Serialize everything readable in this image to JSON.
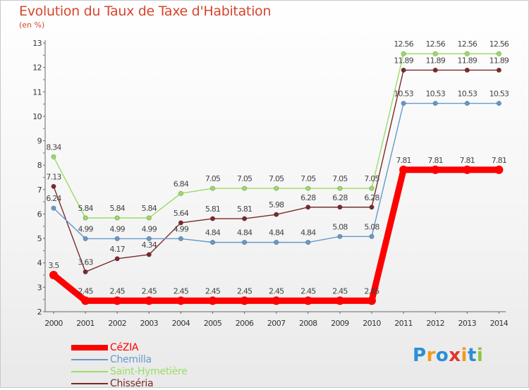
{
  "chart_data": {
    "type": "line",
    "title": "Evolution du Taux de Taxe d'Habitation",
    "subtitle": "(en %)",
    "x": [
      "2000",
      "2001",
      "2002",
      "2003",
      "2004",
      "2005",
      "2006",
      "2007",
      "2008",
      "2009",
      "2010",
      "2011",
      "2012",
      "2013",
      "2014"
    ],
    "ylim": [
      2,
      13
    ],
    "yticks": [
      "2",
      "3",
      "4",
      "5",
      "6",
      "7",
      "8",
      "9",
      "10",
      "11",
      "12",
      "13"
    ],
    "grid": false,
    "legend_position": "bottom-left",
    "series": [
      {
        "name": "CéZIA",
        "color": "#ff0000",
        "values": [
          3.5,
          2.45,
          2.45,
          2.45,
          2.45,
          2.45,
          2.45,
          2.45,
          2.45,
          2.45,
          2.45,
          7.81,
          7.81,
          7.81,
          7.81
        ],
        "labels": [
          "3.5",
          "2.45",
          "2.45",
          "2.45",
          "2.45",
          "2.45",
          "2.45",
          "2.45",
          "2.45",
          "2.45",
          "2.45",
          "7.81",
          "7.81",
          "7.81",
          "7.81"
        ]
      },
      {
        "name": "Chemilla",
        "color": "#6699cc",
        "values": [
          6.24,
          4.99,
          4.99,
          4.99,
          4.99,
          4.84,
          4.84,
          4.84,
          4.84,
          5.08,
          5.08,
          10.53,
          10.53,
          10.53,
          10.53
        ],
        "labels": [
          "6.24",
          "4.99",
          "4.99",
          "4.99",
          "4.99",
          "4.84",
          "4.84",
          "4.84",
          "4.84",
          "5.08",
          "5.08",
          "10.53",
          "10.53",
          "10.53",
          "10.53"
        ]
      },
      {
        "name": "Saint-Hymetière",
        "color": "#99dd66",
        "values": [
          8.34,
          5.84,
          5.84,
          5.84,
          6.84,
          7.05,
          7.05,
          7.05,
          7.05,
          7.05,
          7.05,
          12.56,
          12.56,
          12.56,
          12.56
        ],
        "labels": [
          "8.34",
          "5.84",
          "5.84",
          "5.84",
          "6.84",
          "7.05",
          "7.05",
          "7.05",
          "7.05",
          "7.05",
          "7.05",
          "12.56",
          "12.56",
          "12.56",
          "12.56"
        ]
      },
      {
        "name": "Chisséria",
        "color": "#7a2a2a",
        "values": [
          7.13,
          3.63,
          4.17,
          4.34,
          5.64,
          5.81,
          5.81,
          5.98,
          6.28,
          6.28,
          6.28,
          11.89,
          11.89,
          11.89,
          11.89
        ],
        "labels": [
          "7.13",
          "3.63",
          "4.17",
          "4.34",
          "5.64",
          "5.81",
          "5.81",
          "5.98",
          "6.28",
          "6.28",
          "6.28",
          "11.89",
          "11.89",
          "11.89",
          "11.89"
        ]
      }
    ]
  },
  "logo": {
    "letters": [
      "P",
      "r",
      "o",
      "x",
      "i",
      "t",
      "i"
    ],
    "colors": [
      "#2a8fd6",
      "#f39a1c",
      "#2a8fd6",
      "#e2352c",
      "#f39a1c",
      "#2a8fd6",
      "#8cc63f"
    ]
  }
}
